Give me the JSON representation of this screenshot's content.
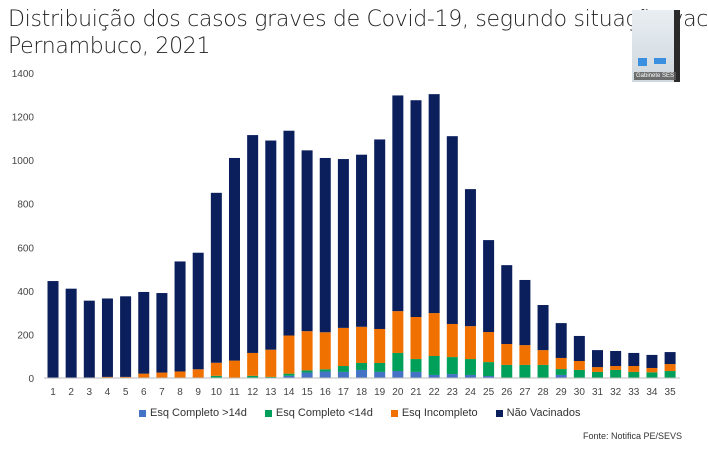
{
  "title_line1": "Distribuição dos casos graves de Covid-19, segundo situação vac",
  "title_line2": "Pernambuco, 2021",
  "video_label": "Gabinete SES",
  "source": "Fonte: Notifica PE/SEVS",
  "chart_data": {
    "type": "bar",
    "stacked": true,
    "title": "Distribuição dos casos graves de Covid-19, segundo situação vacinal, Pernambuco, 2021",
    "xlabel": "",
    "ylabel": "",
    "ylim": [
      0,
      1400
    ],
    "yticks": [
      0,
      200,
      400,
      600,
      800,
      1000,
      1200,
      1400
    ],
    "grid": false,
    "legend_position": "bottom",
    "categories": [
      "1",
      "2",
      "3",
      "4",
      "5",
      "6",
      "7",
      "8",
      "9",
      "10",
      "11",
      "12",
      "13",
      "14",
      "15",
      "16",
      "17",
      "18",
      "19",
      "20",
      "21",
      "22",
      "23",
      "24",
      "25",
      "26",
      "27",
      "28",
      "29",
      "30",
      "31",
      "32",
      "33",
      "34",
      "35"
    ],
    "series": [
      {
        "name": "Esq Completo >14d",
        "color": "#4472c4",
        "values": [
          0,
          0,
          0,
          0,
          0,
          0,
          0,
          0,
          0,
          0,
          0,
          0,
          0,
          10,
          25,
          30,
          28,
          37,
          28,
          32,
          28,
          14,
          18,
          14,
          9,
          0,
          0,
          0,
          14,
          0,
          0,
          0,
          0,
          0,
          0
        ]
      },
      {
        "name": "Esq Completo <14d",
        "color": "#00a05a",
        "values": [
          0,
          0,
          0,
          0,
          0,
          0,
          0,
          0,
          0,
          10,
          0,
          10,
          5,
          10,
          10,
          10,
          27,
          32,
          41,
          83,
          59,
          87,
          78,
          73,
          64,
          60,
          60,
          60,
          27,
          37,
          28,
          37,
          28,
          26,
          32
        ]
      },
      {
        "name": "Esq Incompleto",
        "color": "#f07000",
        "values": [
          0,
          0,
          0,
          5,
          5,
          20,
          25,
          30,
          40,
          60,
          80,
          105,
          125,
          175,
          180,
          170,
          175,
          166,
          156,
          192,
          193,
          197,
          152,
          151,
          138,
          96,
          91,
          68,
          51,
          41,
          22,
          18,
          27,
          20,
          32
        ]
      },
      {
        "name": "Não Vacinados",
        "color": "#0b1f5c",
        "values": [
          445,
          410,
          355,
          360,
          370,
          375,
          365,
          505,
          535,
          780,
          930,
          1000,
          960,
          940,
          830,
          800,
          775,
          790,
          870,
          990,
          995,
          1005,
          862,
          629,
          422,
          362,
          299,
          207,
          160,
          115,
          78,
          69,
          60,
          60,
          55
        ]
      }
    ]
  }
}
